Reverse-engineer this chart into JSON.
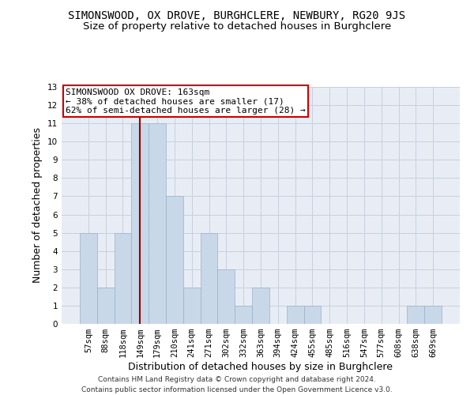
{
  "title": "SIMONSWOOD, OX DROVE, BURGHCLERE, NEWBURY, RG20 9JS",
  "subtitle": "Size of property relative to detached houses in Burghclere",
  "xlabel": "Distribution of detached houses by size in Burghclere",
  "ylabel": "Number of detached properties",
  "categories": [
    "57sqm",
    "88sqm",
    "118sqm",
    "149sqm",
    "179sqm",
    "210sqm",
    "241sqm",
    "271sqm",
    "302sqm",
    "332sqm",
    "363sqm",
    "394sqm",
    "424sqm",
    "455sqm",
    "485sqm",
    "516sqm",
    "547sqm",
    "577sqm",
    "608sqm",
    "638sqm",
    "669sqm"
  ],
  "values": [
    5,
    2,
    5,
    11,
    11,
    7,
    2,
    5,
    3,
    1,
    2,
    0,
    1,
    1,
    0,
    0,
    0,
    0,
    0,
    1,
    1
  ],
  "bar_color": "#c8d8e8",
  "bar_edge_color": "#9ab0c8",
  "vline_color": "#990000",
  "ylim": [
    0,
    13
  ],
  "yticks": [
    0,
    1,
    2,
    3,
    4,
    5,
    6,
    7,
    8,
    9,
    10,
    11,
    12,
    13
  ],
  "annotation_line1": "SIMONSWOOD OX DROVE: 163sqm",
  "annotation_line2": "← 38% of detached houses are smaller (17)",
  "annotation_line3": "62% of semi-detached houses are larger (28) →",
  "annotation_box_color": "#ffffff",
  "annotation_box_edge": "#cc0000",
  "footer1": "Contains HM Land Registry data © Crown copyright and database right 2024.",
  "footer2": "Contains public sector information licensed under the Open Government Licence v3.0.",
  "bg_color": "#ffffff",
  "plot_bg_color": "#e8edf5",
  "grid_color": "#c8d0dc",
  "title_fontsize": 10,
  "subtitle_fontsize": 9.5,
  "ylabel_fontsize": 9,
  "xlabel_fontsize": 9,
  "tick_fontsize": 7.5,
  "annotation_fontsize": 8,
  "footer_fontsize": 6.5,
  "vline_index": 3
}
